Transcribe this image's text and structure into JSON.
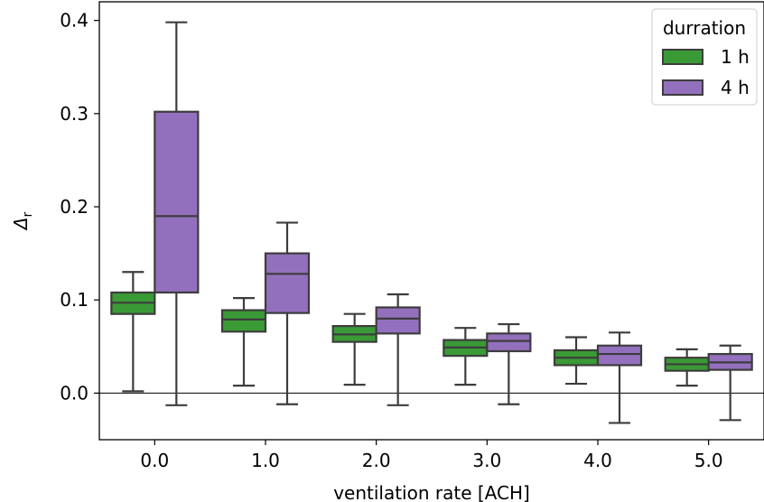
{
  "chart_data": {
    "type": "box",
    "xlabel": "ventilation rate [ACH]",
    "ylabel": "Δ",
    "ylabel_sub": "r",
    "categories": [
      "0.0",
      "1.0",
      "2.0",
      "3.0",
      "4.0",
      "5.0"
    ],
    "ylim": [
      -0.05,
      0.42
    ],
    "yticks": [
      0.0,
      0.1,
      0.2,
      0.3,
      0.4
    ],
    "ytick_labels": [
      "0.0",
      "0.1",
      "0.2",
      "0.3",
      "0.4"
    ],
    "reference_line": 0.0,
    "legend": {
      "title": "durration",
      "position": "upper right"
    },
    "series": [
      {
        "name": "1 h",
        "color": "#3a9a35",
        "boxes": [
          {
            "whislo": 0.002,
            "q1": 0.085,
            "med": 0.097,
            "q3": 0.108,
            "whishi": 0.13
          },
          {
            "whislo": 0.008,
            "q1": 0.066,
            "med": 0.079,
            "q3": 0.089,
            "whishi": 0.102
          },
          {
            "whislo": 0.009,
            "q1": 0.055,
            "med": 0.063,
            "q3": 0.072,
            "whishi": 0.085
          },
          {
            "whislo": 0.009,
            "q1": 0.04,
            "med": 0.049,
            "q3": 0.057,
            "whishi": 0.07
          },
          {
            "whislo": 0.01,
            "q1": 0.03,
            "med": 0.038,
            "q3": 0.046,
            "whishi": 0.06
          },
          {
            "whislo": 0.008,
            "q1": 0.024,
            "med": 0.031,
            "q3": 0.038,
            "whishi": 0.047
          }
        ]
      },
      {
        "name": "4 h",
        "color": "#9370bd",
        "boxes": [
          {
            "whislo": -0.013,
            "q1": 0.108,
            "med": 0.19,
            "q3": 0.302,
            "whishi": 0.398
          },
          {
            "whislo": -0.012,
            "q1": 0.086,
            "med": 0.128,
            "q3": 0.15,
            "whishi": 0.183
          },
          {
            "whislo": -0.013,
            "q1": 0.064,
            "med": 0.08,
            "q3": 0.092,
            "whishi": 0.106
          },
          {
            "whislo": -0.012,
            "q1": 0.045,
            "med": 0.056,
            "q3": 0.064,
            "whishi": 0.074
          },
          {
            "whislo": -0.032,
            "q1": 0.03,
            "med": 0.042,
            "q3": 0.051,
            "whishi": 0.065
          },
          {
            "whislo": -0.029,
            "q1": 0.025,
            "med": 0.033,
            "q3": 0.042,
            "whishi": 0.051
          }
        ]
      }
    ]
  }
}
